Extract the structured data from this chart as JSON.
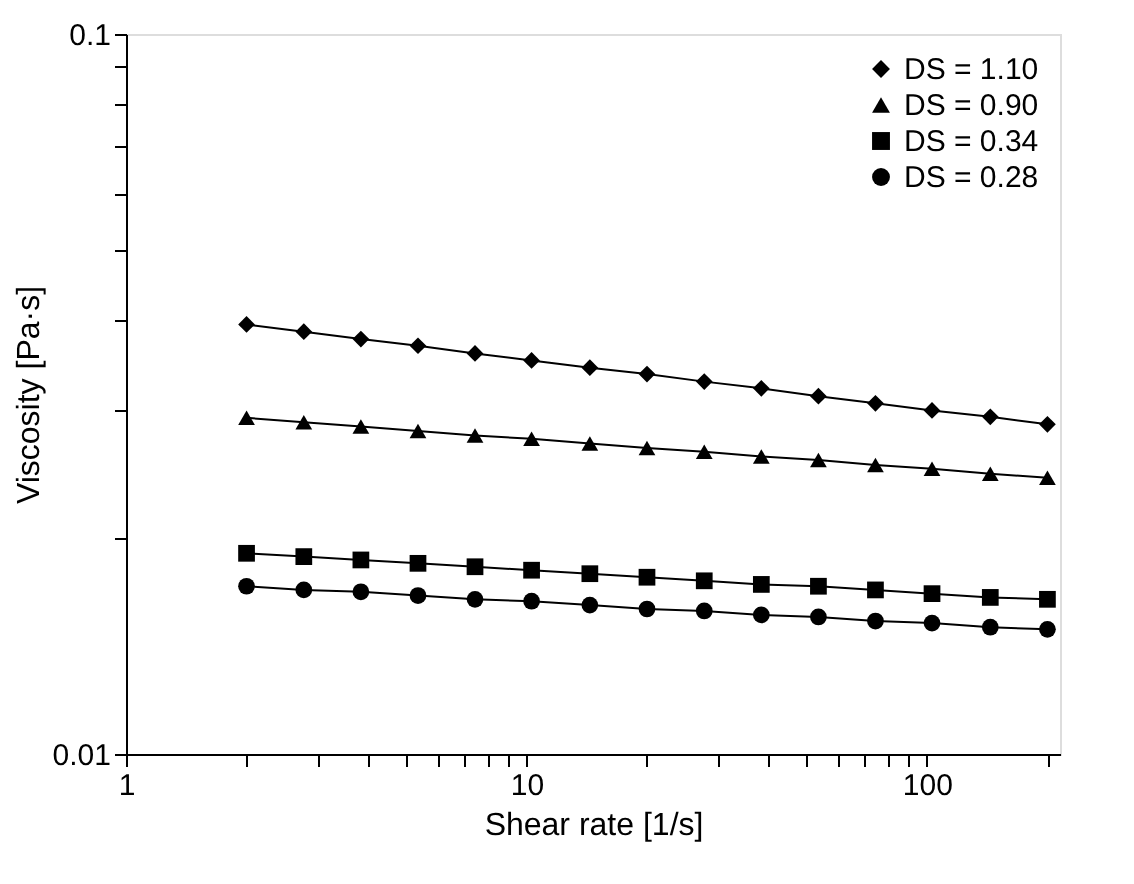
{
  "chart_data": {
    "type": "line",
    "xlabel": "Shear rate [1/s]",
    "ylabel": "Viscosity [Pa·s]",
    "log": "xy",
    "grid": false,
    "legend": "top right",
    "x": [
      2,
      2.78,
      3.86,
      5.36,
      7.44,
      10.3,
      14.4,
      20,
      27.8,
      38.6,
      53.6,
      74.4,
      103,
      144,
      200
    ],
    "xlim": [
      1,
      215
    ],
    "ylim": [
      0.01,
      0.1
    ],
    "xticks": [
      1,
      {
        "value": 2,
        "label": null
      },
      {
        "value": 3,
        "label": null
      },
      {
        "value": 4,
        "label": null
      },
      {
        "value": 5,
        "label": null
      },
      {
        "value": 6,
        "label": null
      },
      {
        "value": 7,
        "label": null
      },
      {
        "value": 8,
        "label": null
      },
      {
        "value": 9,
        "label": null
      },
      10,
      {
        "value": 20,
        "label": null
      },
      {
        "value": 30,
        "label": null
      },
      {
        "value": 40,
        "label": null
      },
      {
        "value": 50,
        "label": null
      },
      {
        "value": 60,
        "label": null
      },
      {
        "value": 70,
        "label": null
      },
      {
        "value": 80,
        "label": null
      },
      {
        "value": 90,
        "label": null
      },
      100,
      {
        "value": 200,
        "label": null
      }
    ],
    "yticks": [
      0.01,
      {
        "value": 0.02,
        "label": null
      },
      {
        "value": 0.03,
        "label": null
      },
      {
        "value": 0.04,
        "label": null
      },
      {
        "value": 0.05,
        "label": null
      },
      {
        "value": 0.06,
        "label": null
      },
      {
        "value": 0.07,
        "label": null
      },
      {
        "value": 0.08,
        "label": null
      },
      {
        "value": 0.09,
        "label": null
      },
      0.1
    ],
    "series": [
      {
        "name": "DS = 1.10",
        "color": "#000000",
        "marker": "diamond",
        "values": [
          0.0395,
          0.0386,
          0.0377,
          0.0369,
          0.036,
          0.0352,
          0.0344,
          0.0337,
          0.0329,
          0.0322,
          0.0314,
          0.0307,
          0.03,
          0.0294,
          0.0287
        ]
      },
      {
        "name": "DS = 0.90",
        "color": "#000000",
        "marker": "triangle",
        "values": [
          0.0293,
          0.0289,
          0.0285,
          0.0281,
          0.0277,
          0.0274,
          0.027,
          0.0266,
          0.0263,
          0.0259,
          0.0256,
          0.0252,
          0.0249,
          0.0245,
          0.0242
        ]
      },
      {
        "name": "DS = 0.34",
        "color": "#000000",
        "marker": "square",
        "values": [
          0.019,
          0.0188,
          0.0186,
          0.0184,
          0.0182,
          0.018,
          0.0178,
          0.0176,
          0.0174,
          0.0172,
          0.0171,
          0.0169,
          0.0167,
          0.0165,
          0.0164
        ]
      },
      {
        "name": "DS = 0.28",
        "color": "#000000",
        "marker": "circle",
        "values": [
          0.0171,
          0.0169,
          0.0168,
          0.0166,
          0.0164,
          0.0163,
          0.0161,
          0.0159,
          0.0158,
          0.0156,
          0.0155,
          0.0153,
          0.0152,
          0.015,
          0.0149
        ]
      }
    ]
  }
}
